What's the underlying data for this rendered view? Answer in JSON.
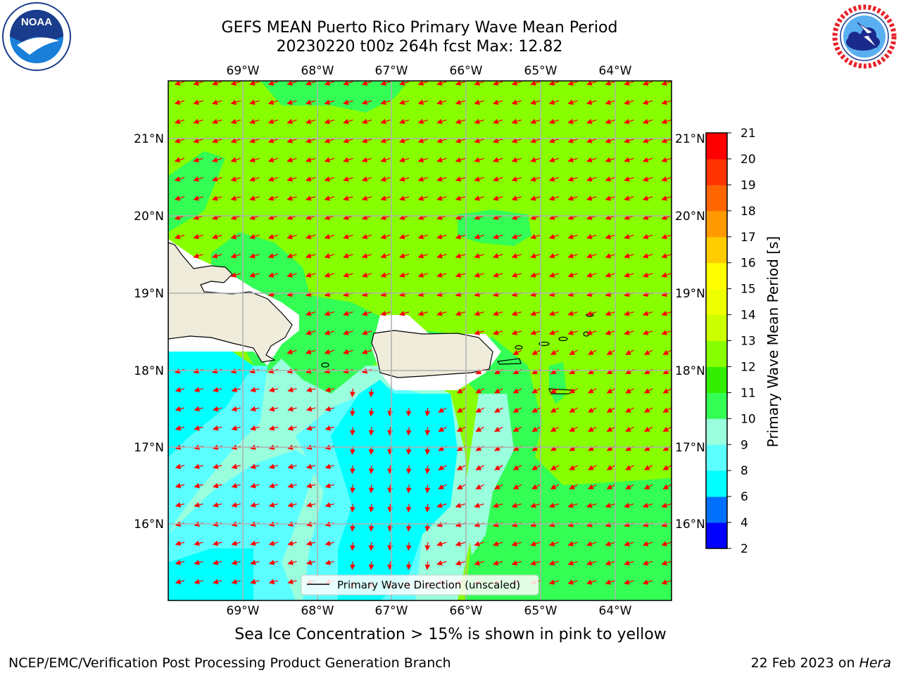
{
  "title": {
    "line1": "GEFS MEAN Puerto Rico Primary Wave Mean Period",
    "line2": "20230220 t00z 264h fcst   Max: 12.82"
  },
  "logos": {
    "noaa": {
      "text": "NOAA",
      "ring_text": "NATIONAL OCEANIC AND ATMOSPHERIC ADMINISTRATION · U.S. DEPARTMENT OF COMMERCE"
    },
    "nws": {
      "ring_text": "NATIONAL WEATHER SERVICE"
    }
  },
  "map": {
    "lon_labels": [
      "69°W",
      "68°W",
      "67°W",
      "66°W",
      "65°W",
      "64°W"
    ],
    "lat_labels": [
      "21°N",
      "20°N",
      "19°N",
      "18°N",
      "17°N",
      "16°N"
    ],
    "legend_label": "Primary Wave Direction (unscaled)",
    "colors": {
      "ocean_green": "#88ff00",
      "land": "#efecdb",
      "arrow": "#ff0000",
      "grid": "#b0b0b0"
    }
  },
  "colorbar": {
    "label": "Primary Wave Mean Period [s]",
    "ticks": [
      "2",
      "4",
      "6",
      "8",
      "9",
      "10",
      "11",
      "12",
      "13",
      "14",
      "15",
      "16",
      "17",
      "18",
      "19",
      "20",
      "21"
    ],
    "colors": [
      "#0000ff",
      "#0070ff",
      "#00ffff",
      "#5cffff",
      "#99ffdd",
      "#33ff55",
      "#33ee00",
      "#88ff00",
      "#ccff00",
      "#eeff00",
      "#ffff00",
      "#ffcc00",
      "#ff9900",
      "#ff6600",
      "#ff3300",
      "#ff0000"
    ]
  },
  "footer": {
    "seaice_note": "Sea Ice Concentration > 15% is shown in pink to yellow",
    "left": "NCEP/EMC/Verification Post Processing Product Generation Branch",
    "right_prefix": "22 Feb 2023 on ",
    "right_host": "Hera"
  }
}
